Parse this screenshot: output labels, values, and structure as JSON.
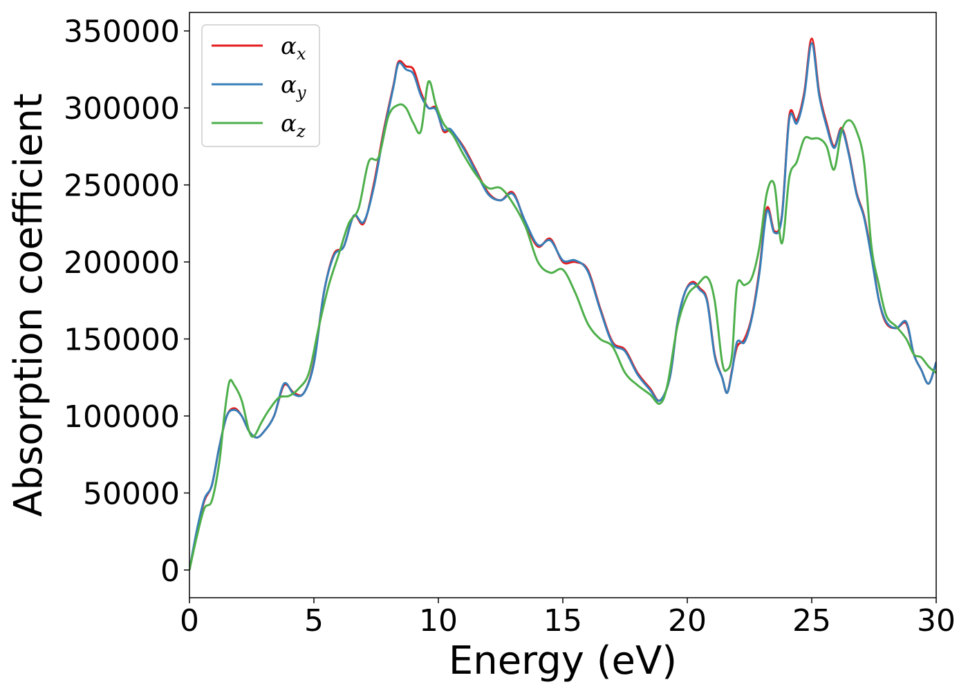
{
  "chart_data": {
    "type": "line",
    "xlabel": "Energy (eV)",
    "ylabel": "Absorption coefficient",
    "xlim": [
      0,
      30
    ],
    "ylim": [
      -18000,
      362000
    ],
    "xticks": [
      0,
      5,
      10,
      15,
      20,
      25,
      30
    ],
    "yticks": [
      0,
      50000,
      100000,
      150000,
      200000,
      250000,
      300000,
      350000
    ],
    "grid": false,
    "legend_position": "top-left",
    "series": [
      {
        "name": "αx",
        "symbol": "α",
        "subscript": "x",
        "color": "#e41a1c",
        "x": [
          0,
          0.3,
          0.6,
          0.9,
          1.2,
          1.5,
          1.8,
          2.1,
          2.4,
          2.7,
          3.0,
          3.4,
          3.8,
          4.2,
          4.6,
          5.0,
          5.4,
          5.8,
          6.2,
          6.6,
          7.0,
          7.4,
          7.8,
          8.2,
          8.4,
          8.7,
          9.0,
          9.3,
          9.6,
          9.9,
          10.2,
          10.5,
          11.0,
          11.5,
          12.0,
          12.5,
          13.0,
          13.5,
          14.0,
          14.5,
          15.0,
          15.5,
          16.0,
          16.5,
          17.0,
          17.5,
          18.0,
          18.5,
          18.9,
          19.3,
          19.6,
          19.9,
          20.2,
          20.5,
          20.8,
          21.1,
          21.4,
          21.6,
          21.8,
          22.0,
          22.3,
          22.6,
          22.9,
          23.2,
          23.5,
          23.8,
          24.1,
          24.4,
          24.7,
          25.0,
          25.3,
          25.6,
          25.9,
          26.2,
          26.5,
          26.8,
          27.1,
          27.4,
          27.7,
          28.0,
          28.4,
          28.8,
          29.1,
          29.4,
          29.7,
          30.0
        ],
        "y": [
          0,
          25000,
          45000,
          55000,
          80000,
          100000,
          105000,
          100000,
          90000,
          86000,
          90000,
          100000,
          120000,
          115000,
          115000,
          135000,
          180000,
          205000,
          210000,
          230000,
          225000,
          250000,
          285000,
          315000,
          330000,
          327000,
          325000,
          310000,
          300000,
          300000,
          285000,
          285000,
          275000,
          260000,
          245000,
          240000,
          245000,
          225000,
          210000,
          215000,
          200000,
          200000,
          195000,
          170000,
          148000,
          143000,
          128000,
          118000,
          110000,
          125000,
          160000,
          180000,
          187000,
          183000,
          175000,
          140000,
          125000,
          115000,
          130000,
          145000,
          150000,
          165000,
          195000,
          235000,
          220000,
          230000,
          295000,
          292000,
          310000,
          345000,
          310000,
          290000,
          275000,
          287000,
          270000,
          245000,
          230000,
          205000,
          175000,
          160000,
          157000,
          160000,
          140000,
          130000,
          121000,
          135000
        ]
      },
      {
        "name": "αy",
        "symbol": "α",
        "subscript": "y",
        "color": "#377eb8",
        "x": [
          0,
          0.3,
          0.6,
          0.9,
          1.2,
          1.5,
          1.8,
          2.1,
          2.4,
          2.7,
          3.0,
          3.4,
          3.8,
          4.2,
          4.6,
          5.0,
          5.4,
          5.8,
          6.2,
          6.6,
          7.0,
          7.4,
          7.8,
          8.2,
          8.4,
          8.7,
          9.0,
          9.3,
          9.6,
          9.9,
          10.2,
          10.5,
          11.0,
          11.5,
          12.0,
          12.5,
          13.0,
          13.5,
          14.0,
          14.5,
          15.0,
          15.5,
          16.0,
          16.5,
          17.0,
          17.5,
          18.0,
          18.5,
          18.9,
          19.3,
          19.6,
          19.9,
          20.2,
          20.5,
          20.8,
          21.1,
          21.4,
          21.6,
          21.8,
          22.0,
          22.3,
          22.6,
          22.9,
          23.2,
          23.5,
          23.8,
          24.1,
          24.4,
          24.7,
          25.0,
          25.3,
          25.6,
          25.9,
          26.2,
          26.5,
          26.8,
          27.1,
          27.4,
          27.7,
          28.0,
          28.4,
          28.8,
          29.1,
          29.4,
          29.7,
          30.0
        ],
        "y": [
          0,
          26000,
          46000,
          55000,
          80000,
          100000,
          104000,
          100000,
          90000,
          86000,
          90000,
          100000,
          121000,
          114000,
          115000,
          134000,
          180000,
          204000,
          210000,
          230000,
          226000,
          248000,
          283000,
          314000,
          329000,
          325000,
          322000,
          308000,
          300000,
          299000,
          286000,
          286000,
          274000,
          259000,
          244000,
          240000,
          244000,
          226000,
          211000,
          214000,
          201000,
          201000,
          194000,
          169000,
          147000,
          142000,
          127000,
          117000,
          110000,
          125000,
          160000,
          180000,
          186000,
          182000,
          174000,
          139000,
          125000,
          115000,
          129000,
          148000,
          148000,
          164000,
          193000,
          233000,
          219000,
          229000,
          293000,
          290000,
          308000,
          342000,
          308000,
          288000,
          274000,
          286000,
          269000,
          244000,
          229000,
          203000,
          175000,
          161000,
          157000,
          161000,
          140000,
          130000,
          121000,
          135000
        ]
      },
      {
        "name": "αz",
        "symbol": "α",
        "subscript": "z",
        "color": "#4daf4a",
        "x": [
          0,
          0.3,
          0.6,
          0.9,
          1.2,
          1.4,
          1.6,
          1.8,
          2.1,
          2.4,
          2.6,
          2.9,
          3.2,
          3.6,
          4.0,
          4.4,
          4.8,
          5.2,
          5.6,
          6.0,
          6.4,
          6.8,
          7.2,
          7.6,
          8.0,
          8.4,
          8.7,
          9.0,
          9.3,
          9.6,
          9.9,
          10.2,
          10.6,
          11.0,
          11.5,
          12.0,
          12.5,
          13.0,
          13.5,
          14.0,
          14.5,
          15.0,
          15.5,
          16.0,
          16.5,
          17.0,
          17.5,
          18.0,
          18.5,
          18.9,
          19.2,
          19.6,
          20.0,
          20.4,
          20.8,
          21.1,
          21.4,
          21.6,
          21.8,
          22.0,
          22.3,
          22.6,
          22.9,
          23.2,
          23.5,
          23.8,
          24.1,
          24.4,
          24.7,
          25.0,
          25.3,
          25.6,
          25.9,
          26.2,
          26.5,
          26.8,
          27.1,
          27.4,
          27.7,
          28.0,
          28.4,
          28.8,
          29.1,
          29.4,
          29.7,
          30.0
        ],
        "y": [
          0,
          22000,
          40000,
          45000,
          70000,
          100000,
          122000,
          120000,
          110000,
          90000,
          87000,
          96000,
          104000,
          112000,
          113000,
          118000,
          128000,
          158000,
          185000,
          205000,
          225000,
          235000,
          265000,
          268000,
          295000,
          302000,
          300000,
          290000,
          285000,
          317000,
          302000,
          290000,
          282000,
          270000,
          257000,
          248000,
          248000,
          238000,
          223000,
          200000,
          193000,
          195000,
          180000,
          160000,
          150000,
          145000,
          128000,
          120000,
          114000,
          108000,
          120000,
          158000,
          178000,
          185000,
          190000,
          175000,
          135000,
          130000,
          140000,
          185000,
          185000,
          190000,
          210000,
          245000,
          250000,
          212000,
          255000,
          265000,
          280000,
          280000,
          280000,
          275000,
          260000,
          285000,
          292000,
          285000,
          265000,
          210000,
          185000,
          165000,
          158000,
          150000,
          140000,
          138000,
          132000,
          128000
        ]
      }
    ]
  }
}
